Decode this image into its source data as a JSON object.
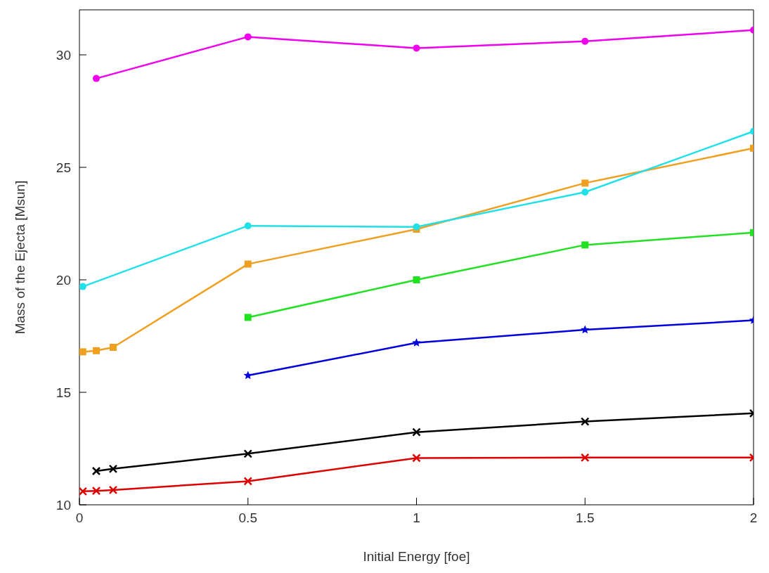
{
  "chart_data": {
    "type": "line",
    "xlabel": "Initial Energy [foe]",
    "ylabel": "Mass of the Ejecta [Msun]",
    "xlim": [
      0,
      2
    ],
    "ylim": [
      10,
      32
    ],
    "xticks": [
      0,
      0.5,
      1,
      1.5,
      2
    ],
    "yticks": [
      10,
      15,
      20,
      25,
      30
    ],
    "grid": false,
    "legend": false,
    "line_style": "solid",
    "series": [
      {
        "color": "#ee00ee",
        "marker": "circle",
        "x": [
          0.05,
          0.5,
          1,
          1.5,
          2
        ],
        "values": [
          28.95,
          30.8,
          30.3,
          30.6,
          31.1
        ]
      },
      {
        "color": "#22e0e8",
        "marker": "circle",
        "x": [
          0.01,
          0.5,
          1,
          1.5,
          2
        ],
        "values": [
          19.7,
          22.4,
          22.35,
          23.9,
          26.6
        ]
      },
      {
        "color": "#f0a020",
        "marker": "square",
        "x": [
          0.01,
          0.05,
          0.1,
          0.5,
          1,
          1.5,
          2
        ],
        "values": [
          16.8,
          16.85,
          17.0,
          20.7,
          22.25,
          24.3,
          25.85
        ]
      },
      {
        "color": "#22e022",
        "marker": "square",
        "x": [
          0.5,
          1,
          1.5,
          2
        ],
        "values": [
          18.33,
          20.0,
          21.55,
          22.1
        ]
      },
      {
        "color": "#0000dd",
        "marker": "star",
        "x": [
          0.5,
          1,
          1.5,
          2
        ],
        "values": [
          15.75,
          17.2,
          17.78,
          18.2
        ]
      },
      {
        "color": "#000000",
        "marker": "cross",
        "x": [
          0.05,
          0.1,
          0.5,
          1,
          1.5,
          2
        ],
        "values": [
          11.5,
          11.6,
          12.27,
          13.23,
          13.7,
          14.07
        ]
      },
      {
        "color": "#dd0000",
        "marker": "cross",
        "x": [
          0.01,
          0.05,
          0.1,
          0.5,
          1,
          1.5,
          2
        ],
        "values": [
          10.6,
          10.62,
          10.66,
          11.05,
          12.08,
          12.1,
          12.1
        ]
      }
    ]
  }
}
